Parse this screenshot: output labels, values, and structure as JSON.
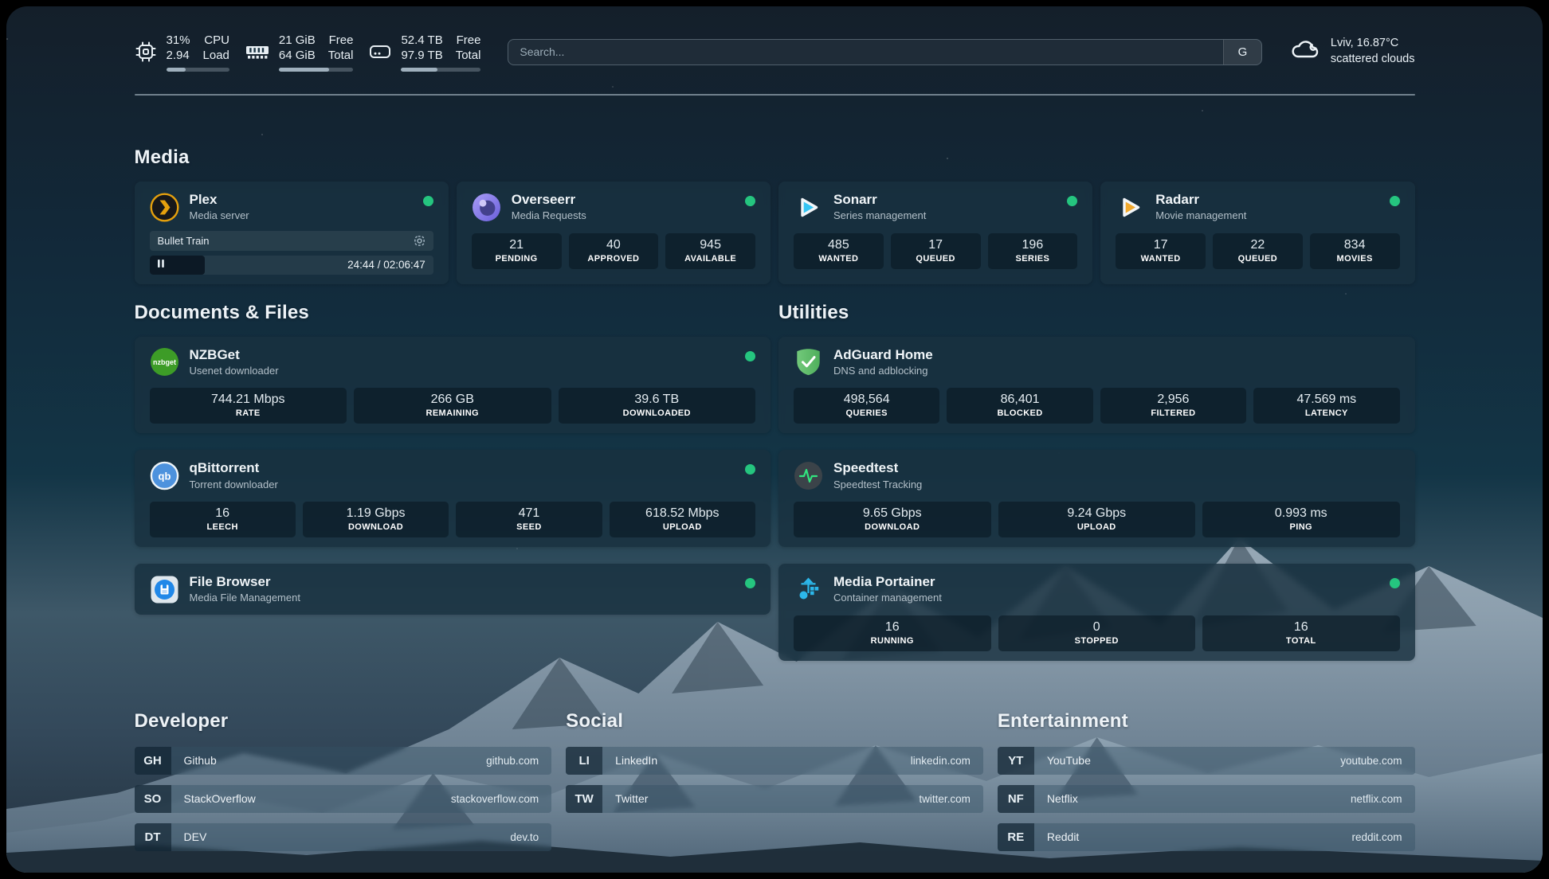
{
  "header": {
    "metrics": [
      {
        "id": "cpu",
        "values": [
          "31%",
          "2.94"
        ],
        "labels": [
          "CPU",
          "Load"
        ],
        "progress": 31
      },
      {
        "id": "memory",
        "values": [
          "21 GiB",
          "64 GiB"
        ],
        "labels": [
          "Free",
          "Total"
        ],
        "progress": 67
      },
      {
        "id": "disk",
        "values": [
          "52.4 TB",
          "97.9 TB"
        ],
        "labels": [
          "Free",
          "Total"
        ],
        "progress": 46
      }
    ],
    "search": {
      "placeholder": "Search...",
      "engine_button": "G"
    },
    "weather": {
      "location_temp": "Lviv, 16.87°C",
      "condition": "scattered clouds"
    }
  },
  "sections": {
    "media": {
      "title": "Media",
      "apps": [
        {
          "name": "Plex",
          "subtitle": "Media server",
          "online": true,
          "now_playing": {
            "title": "Bullet Train",
            "time_display": "24:44 / 02:06:47",
            "progress_pct": 19.5
          }
        },
        {
          "name": "Overseerr",
          "subtitle": "Media Requests",
          "online": true,
          "stats": [
            {
              "value": "21",
              "label": "PENDING"
            },
            {
              "value": "40",
              "label": "APPROVED"
            },
            {
              "value": "945",
              "label": "AVAILABLE"
            }
          ]
        },
        {
          "name": "Sonarr",
          "subtitle": "Series management",
          "online": true,
          "stats": [
            {
              "value": "485",
              "label": "WANTED"
            },
            {
              "value": "17",
              "label": "QUEUED"
            },
            {
              "value": "196",
              "label": "SERIES"
            }
          ]
        },
        {
          "name": "Radarr",
          "subtitle": "Movie management",
          "online": true,
          "stats": [
            {
              "value": "17",
              "label": "WANTED"
            },
            {
              "value": "22",
              "label": "QUEUED"
            },
            {
              "value": "834",
              "label": "MOVIES"
            }
          ]
        }
      ]
    },
    "documents": {
      "title": "Documents & Files",
      "apps": [
        {
          "name": "NZBGet",
          "subtitle": "Usenet downloader",
          "online": true,
          "stats": [
            {
              "value": "744.21 Mbps",
              "label": "RATE"
            },
            {
              "value": "266 GB",
              "label": "REMAINING"
            },
            {
              "value": "39.6 TB",
              "label": "DOWNLOADED"
            }
          ]
        },
        {
          "name": "qBittorrent",
          "subtitle": "Torrent downloader",
          "online": true,
          "stats": [
            {
              "value": "16",
              "label": "LEECH"
            },
            {
              "value": "1.19 Gbps",
              "label": "DOWNLOAD"
            },
            {
              "value": "471",
              "label": "SEED"
            },
            {
              "value": "618.52 Mbps",
              "label": "UPLOAD"
            }
          ]
        },
        {
          "name": "File Browser",
          "subtitle": "Media File Management",
          "online": true
        }
      ]
    },
    "utilities": {
      "title": "Utilities",
      "apps": [
        {
          "name": "AdGuard Home",
          "subtitle": "DNS and adblocking",
          "online": false,
          "stats": [
            {
              "value": "498,564",
              "label": "QUERIES"
            },
            {
              "value": "86,401",
              "label": "BLOCKED"
            },
            {
              "value": "2,956",
              "label": "FILTERED"
            },
            {
              "value": "47.569 ms",
              "label": "LATENCY"
            }
          ]
        },
        {
          "name": "Speedtest",
          "subtitle": "Speedtest Tracking",
          "online": false,
          "stats": [
            {
              "value": "9.65 Gbps",
              "label": "DOWNLOAD"
            },
            {
              "value": "9.24 Gbps",
              "label": "UPLOAD"
            },
            {
              "value": "0.993 ms",
              "label": "PING"
            }
          ]
        },
        {
          "name": "Media Portainer",
          "subtitle": "Container management",
          "online": true,
          "stats": [
            {
              "value": "16",
              "label": "RUNNING"
            },
            {
              "value": "0",
              "label": "STOPPED"
            },
            {
              "value": "16",
              "label": "TOTAL"
            }
          ]
        }
      ]
    },
    "bookmarks": [
      {
        "title": "Developer",
        "links": [
          {
            "abbr": "GH",
            "name": "Github",
            "url": "github.com"
          },
          {
            "abbr": "SO",
            "name": "StackOverflow",
            "url": "stackoverflow.com"
          },
          {
            "abbr": "DT",
            "name": "DEV",
            "url": "dev.to"
          }
        ]
      },
      {
        "title": "Social",
        "links": [
          {
            "abbr": "LI",
            "name": "LinkedIn",
            "url": "linkedin.com"
          },
          {
            "abbr": "TW",
            "name": "Twitter",
            "url": "twitter.com"
          }
        ]
      },
      {
        "title": "Entertainment",
        "links": [
          {
            "abbr": "YT",
            "name": "YouTube",
            "url": "youtube.com"
          },
          {
            "abbr": "NF",
            "name": "Netflix",
            "url": "netflix.com"
          },
          {
            "abbr": "RE",
            "name": "Reddit",
            "url": "reddit.com"
          }
        ]
      }
    ]
  },
  "icons": {
    "nzbget_logo_text": "nzbget",
    "qbittorrent_logo_text": "qb"
  },
  "colors": {
    "status_online": "#25c57f",
    "plex_amber": "#e5a00d",
    "sonarr_cyan": "#35c5f4",
    "radarr_amber": "#f0a92e",
    "nzbget_green": "#3d9c27",
    "qbittorrent_blue": "#4d92dd",
    "adguard_green": "#5fbf6b",
    "portainer_blue": "#2cb7ea",
    "speedtest_pulse": "#31e57f"
  }
}
